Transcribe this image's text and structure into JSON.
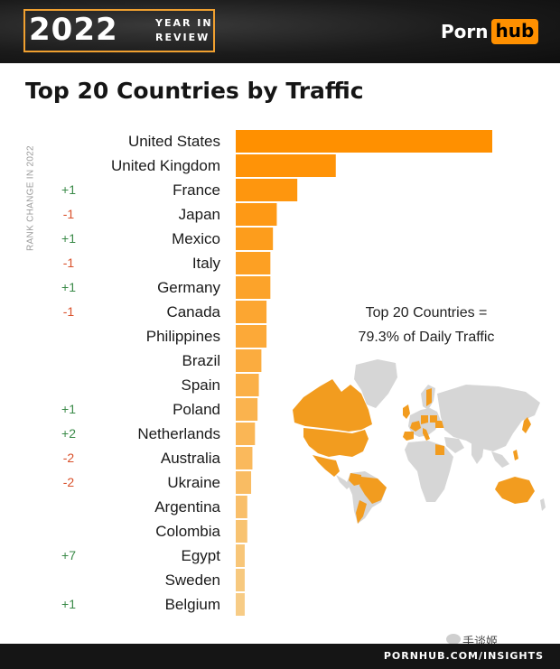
{
  "header": {
    "year": "2022",
    "year_in_review": [
      "YEAR IN",
      "REVIEW"
    ],
    "brand": {
      "part1": "Porn",
      "part2": "hub"
    }
  },
  "colors": {
    "bar_top": "#ff9000",
    "bar_bottom": "#f7cc86",
    "positive": "#3a8a48",
    "negative": "#d9502a",
    "accent": "#ff9000"
  },
  "rank_axis_label": "RANK CHANGE IN 2022",
  "note": {
    "line1": "Top 20 Countries =",
    "line2": "79.3% of Daily Traffic"
  },
  "footer": {
    "url": "PORNHUB.COM/INSIGHTS",
    "watermark": "手谈姬"
  },
  "chart_data": {
    "type": "bar",
    "orientation": "horizontal",
    "title": "Top 20 Countries by Traffic",
    "categories": [
      "United States",
      "United Kingdom",
      "France",
      "Japan",
      "Mexico",
      "Italy",
      "Germany",
      "Canada",
      "Philippines",
      "Brazil",
      "Spain",
      "Poland",
      "Netherlands",
      "Australia",
      "Ukraine",
      "Argentina",
      "Colombia",
      "Egypt",
      "Sweden",
      "Belgium"
    ],
    "values": [
      100,
      39,
      24,
      16,
      14.5,
      13.5,
      13.5,
      12,
      12,
      10,
      9,
      8.5,
      7.5,
      6.5,
      6,
      4.5,
      4.5,
      3.5,
      3.5,
      3.5
    ],
    "rank_change": [
      "",
      "",
      "+1",
      "-1",
      "+1",
      "-1",
      "+1",
      "-1",
      "",
      "",
      "",
      "+1",
      "+2",
      "-2",
      "-2",
      "",
      "",
      "+7",
      "",
      "+1"
    ],
    "xlim": [
      0,
      100
    ]
  }
}
